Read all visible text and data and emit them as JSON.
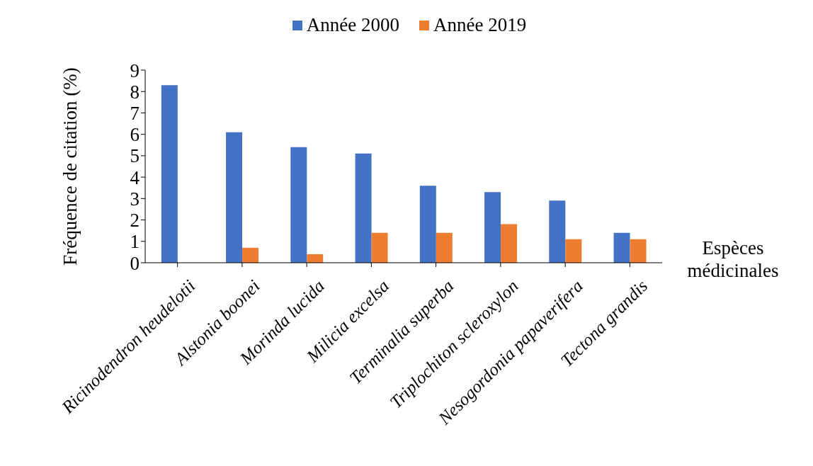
{
  "chart_data": {
    "type": "bar",
    "xlabel": "Espèces médicinales",
    "ylabel": "Fréquence de citation (%)",
    "categories": [
      "Ricinodendron heudelotii",
      "Alstonia boonei",
      "Morinda lucida",
      "Milicia excelsa",
      "Terminalia superba",
      "Triplochiton scleroxylon",
      "Nesogordonia papaverifera",
      "Tectona grandis"
    ],
    "series": [
      {
        "name": "Année 2000",
        "color": "#4472c4",
        "values": [
          8.3,
          6.1,
          5.4,
          5.1,
          3.6,
          3.3,
          2.9,
          1.4
        ]
      },
      {
        "name": "Année 2019",
        "color": "#ed7d31",
        "values": [
          0,
          0.7,
          0.4,
          1.4,
          1.4,
          1.8,
          1.1,
          1.1
        ]
      }
    ],
    "ylim": [
      0,
      9
    ],
    "yticks": [
      0,
      1,
      2,
      3,
      4,
      5,
      6,
      7,
      8,
      9
    ],
    "grid": false,
    "legend": "top"
  }
}
